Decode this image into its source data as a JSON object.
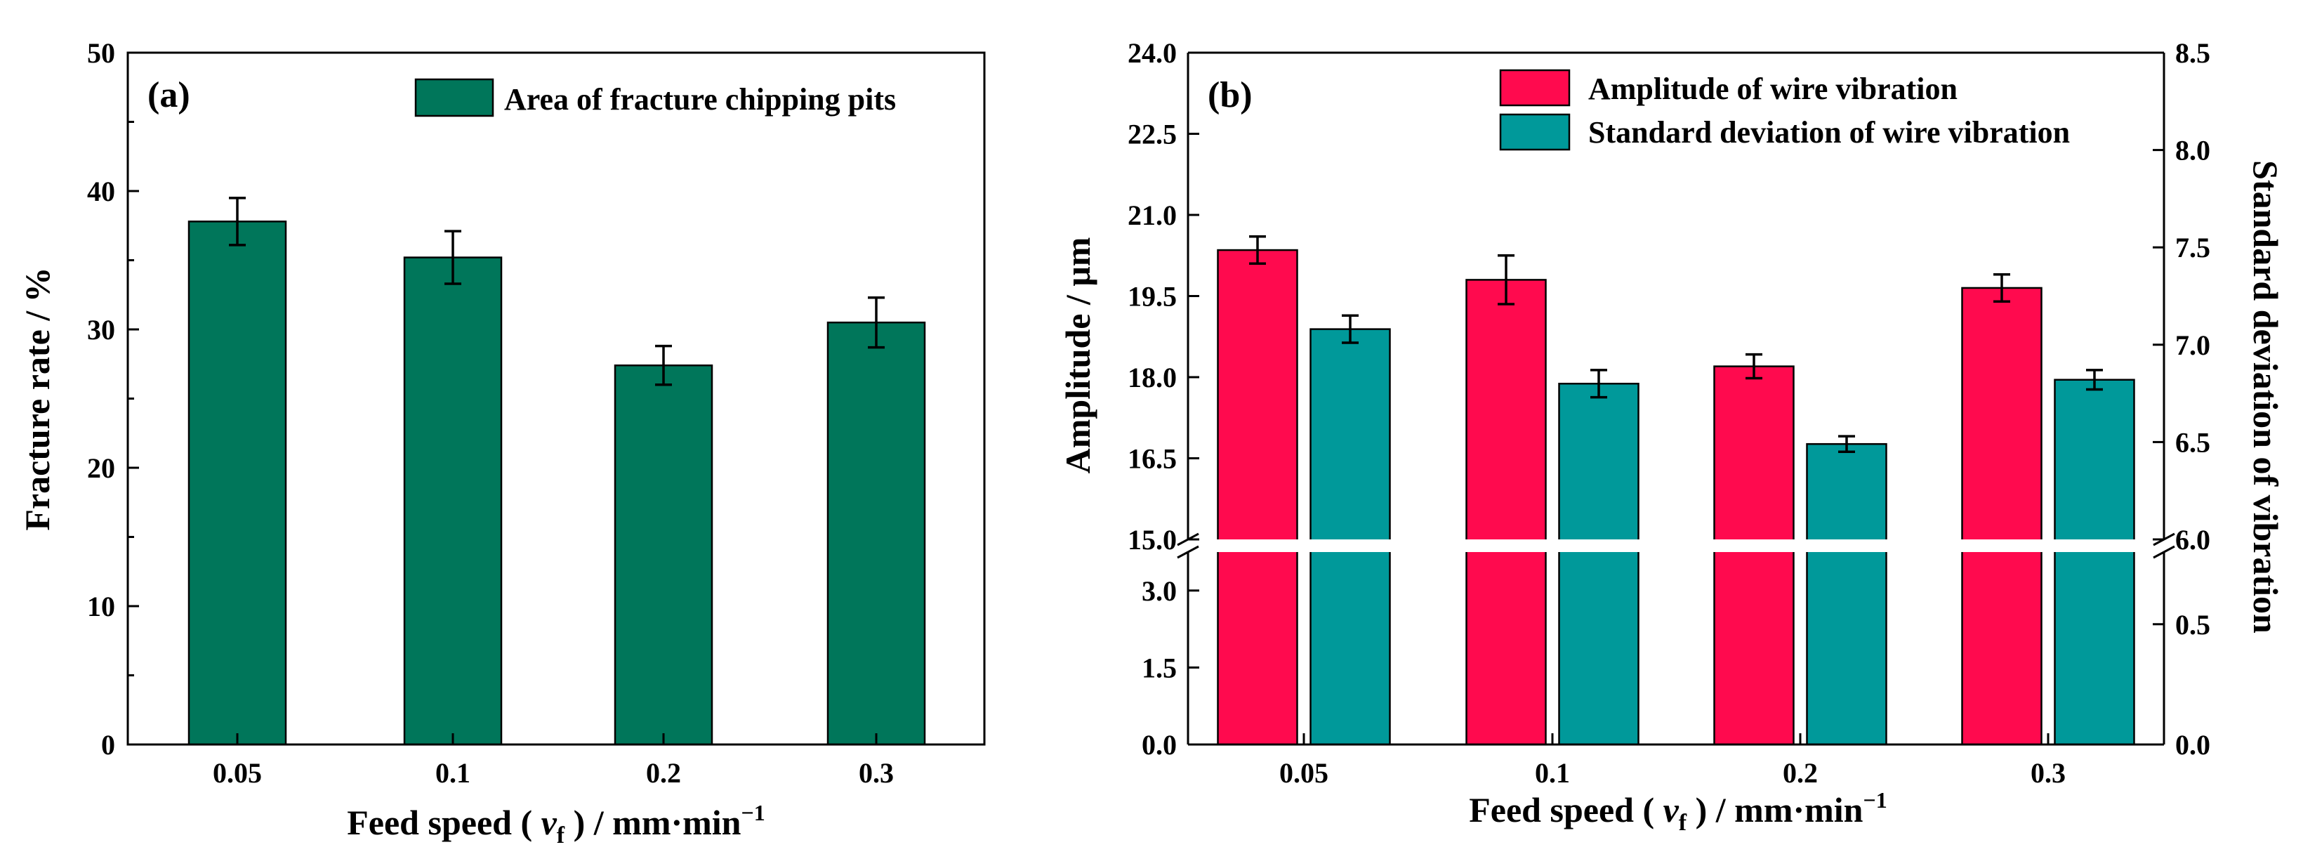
{
  "chart_data": [
    {
      "type": "bar",
      "panel_label": "(a)",
      "categories": [
        "0.05",
        "0.1",
        "0.2",
        "0.3"
      ],
      "series": [
        {
          "name": "Area of fracture chipping pits",
          "color": "#00765A",
          "values": [
            37.8,
            35.2,
            27.4,
            30.5
          ],
          "errors": [
            1.7,
            1.9,
            1.4,
            1.8
          ]
        }
      ],
      "xlabel": "Feed speed ( v_f ) / mm·min⁻¹",
      "xlabel_parts": {
        "prefix": "Feed speed ( ",
        "var": "v",
        "sub": "f",
        "suffix": " ) / mm·min",
        "sup": "−1"
      },
      "ylabel": "Fracture rate / %",
      "ylim": [
        0,
        50
      ],
      "yticks": [
        "0",
        "10",
        "20",
        "30",
        "40",
        "50"
      ],
      "legend": "top-right"
    },
    {
      "type": "bar",
      "panel_label": "(b)",
      "categories": [
        "0.05",
        "0.1",
        "0.2",
        "0.3"
      ],
      "series": [
        {
          "name": "Amplitude of wire vibration",
          "axis": "left",
          "color": "#FF0A4E",
          "values": [
            20.35,
            19.8,
            18.2,
            19.65
          ],
          "errors": [
            0.25,
            0.45,
            0.22,
            0.25
          ]
        },
        {
          "name": "Standard deviation of wire vibration",
          "axis": "right",
          "color": "#00999A",
          "values": [
            7.08,
            6.8,
            6.49,
            6.82
          ],
          "errors": [
            0.07,
            0.07,
            0.04,
            0.05
          ]
        }
      ],
      "xlabel": "Feed speed ( v_f ) / mm·min⁻¹",
      "xlabel_parts": {
        "prefix": "Feed speed ( ",
        "var": "v",
        "sub": "f",
        "suffix": " ) / mm·min",
        "sup": "−1"
      },
      "ylabel_left": "Amplitude / μm",
      "ylabel_right": "Standard deviation of vibration",
      "left_axis": {
        "lower_segment": [
          0,
          3.75
        ],
        "upper_segment": [
          15,
          24
        ],
        "lower_ticks": [
          "0.0",
          "1.5",
          "3.0"
        ],
        "upper_ticks": [
          "15.0",
          "16.5",
          "18.0",
          "19.5",
          "21.0",
          "22.5",
          "24.0"
        ]
      },
      "right_axis": {
        "lower_segment": [
          0,
          0.8
        ],
        "upper_segment": [
          6,
          8.5
        ],
        "lower_ticks": [
          "0.0",
          "0.5"
        ],
        "upper_ticks": [
          "6.0",
          "6.5",
          "7.0",
          "7.5",
          "8.0",
          "8.5"
        ]
      },
      "axis_break": true,
      "legend": "top-right"
    }
  ]
}
